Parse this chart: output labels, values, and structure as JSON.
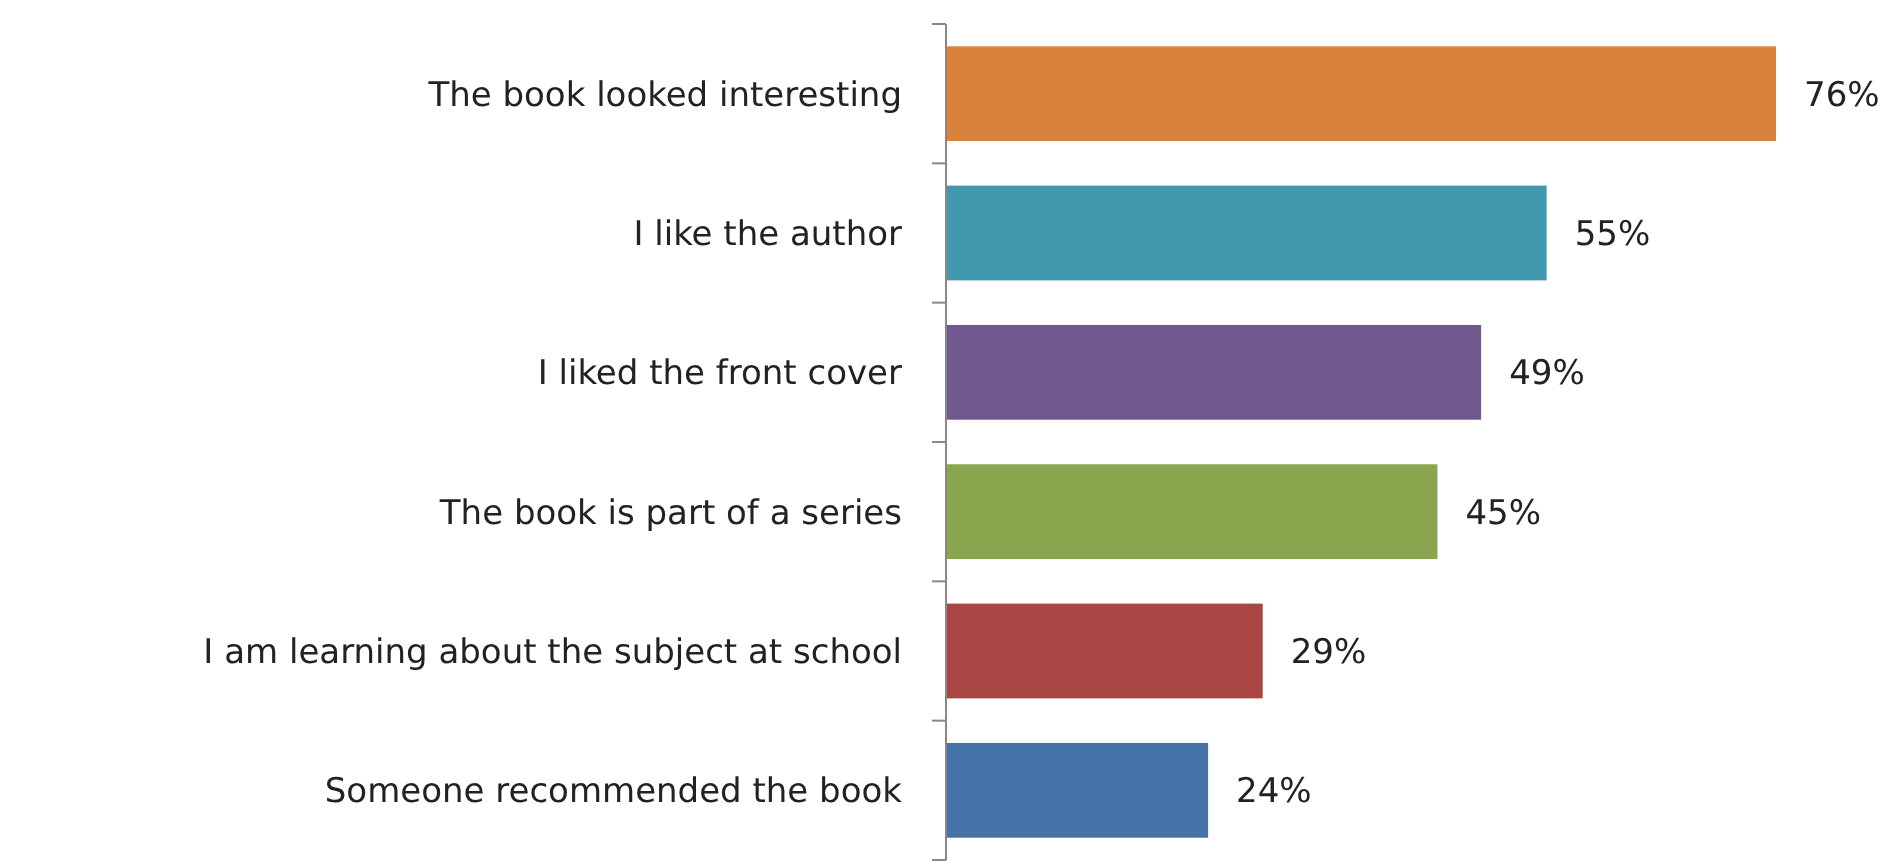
{
  "chart_data": {
    "type": "bar",
    "orientation": "horizontal",
    "categories": [
      "The book looked interesting",
      "I like the author",
      "I liked the front cover",
      "The book is part of a series",
      "I am learning about the subject at school",
      "Someone recommended the book"
    ],
    "values": [
      76,
      55,
      49,
      45,
      29,
      24
    ],
    "colors": [
      "#d9823b",
      "#4198af",
      "#71588f",
      "#89a54e",
      "#aa4643",
      "#4572a7"
    ],
    "value_labels": [
      "76%",
      "55%",
      "49%",
      "45%",
      "29%",
      "24%"
    ]
  }
}
